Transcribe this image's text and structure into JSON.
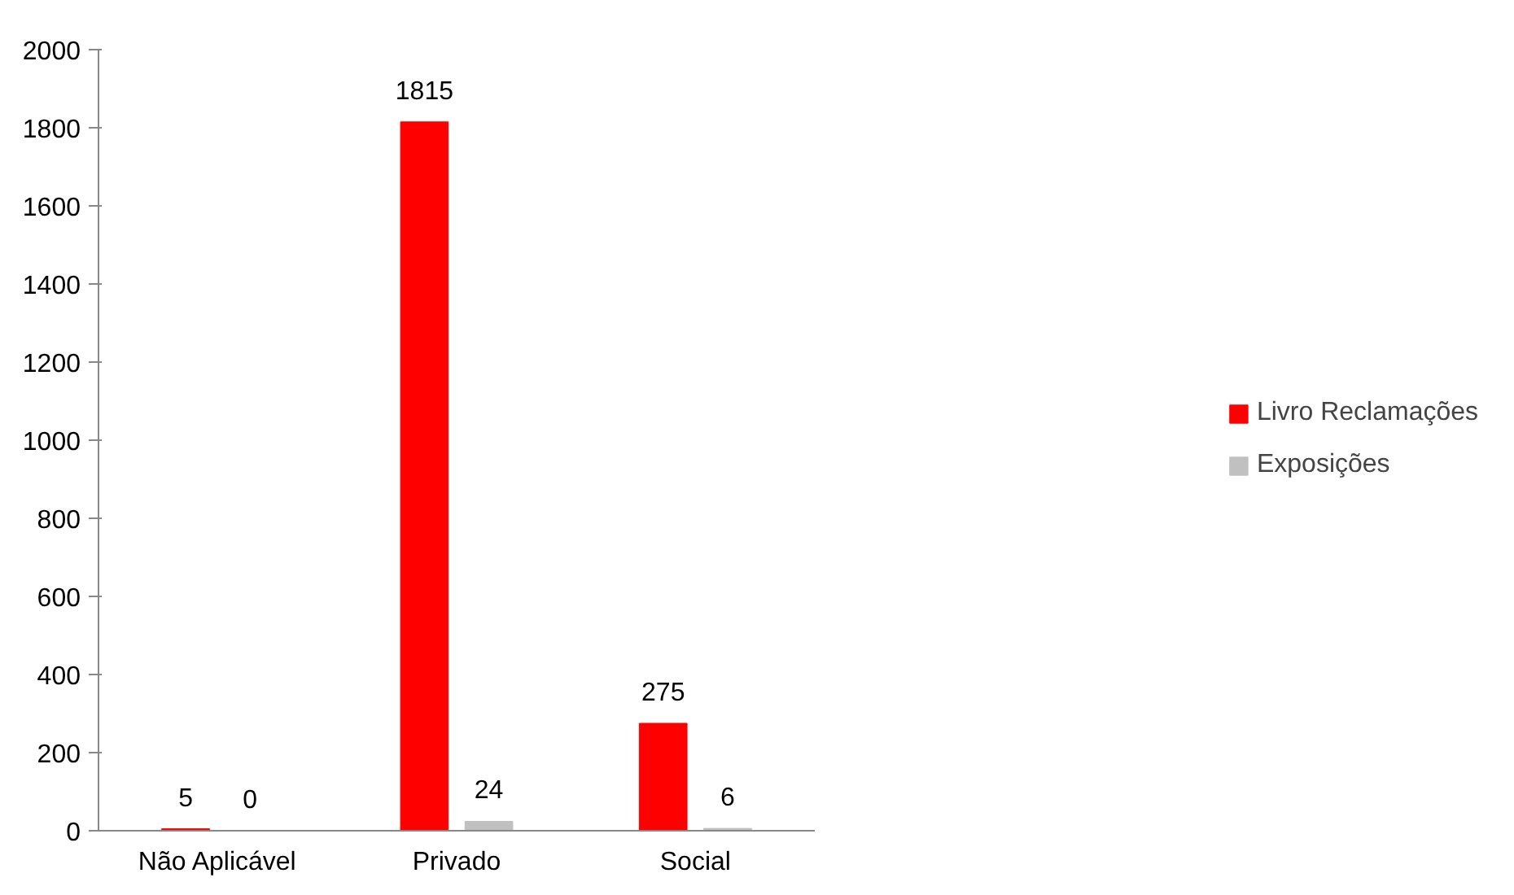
{
  "chart_data": {
    "type": "bar",
    "categories": [
      "Não Aplicável",
      "Privado",
      "Social"
    ],
    "series": [
      {
        "name": "Livro Reclamações",
        "color": "#ff0000",
        "values": [
          5,
          1815,
          275
        ]
      },
      {
        "name": "Exposições",
        "color": "#c0c0c0",
        "values": [
          0,
          24,
          6
        ]
      }
    ],
    "ylim": [
      0,
      2000
    ],
    "yticks": [
      0,
      200,
      400,
      600,
      800,
      1000,
      1200,
      1400,
      1600,
      1800,
      2000
    ],
    "data_labels": true,
    "legend": "right",
    "grid": false
  }
}
